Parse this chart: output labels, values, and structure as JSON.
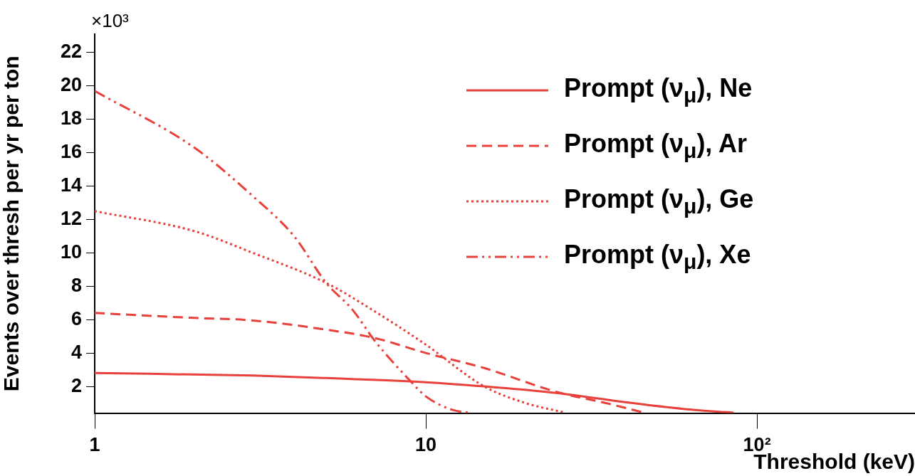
{
  "chart_data": {
    "type": "line",
    "xlabel": "Threshold (keV)",
    "ylabel": "Events over thresh per yr per ton",
    "annotations": [
      "×10³"
    ],
    "log": "x",
    "xlim": [
      1,
      300
    ],
    "xticks": [
      1,
      10,
      {
        "value": 100,
        "label": "10²"
      }
    ],
    "ylim": [
      0.4,
      23.1
    ],
    "yticks": [
      2,
      4,
      6,
      8,
      10,
      12,
      14,
      16,
      18,
      20,
      22
    ],
    "grid": false,
    "legend": "top right",
    "marker": "none",
    "series": [
      {
        "name": "Prompt (ν$_{μ}$), Ne",
        "color": "#e8403a",
        "line_style": "solid",
        "x": [
          1,
          3,
          5,
          10,
          15,
          25,
          40,
          60,
          85
        ],
        "values": [
          2.8,
          2.65,
          2.5,
          2.25,
          2.0,
          1.6,
          1.05,
          0.65,
          0.42
        ]
      },
      {
        "name": "Prompt (ν$_{μ}$), Ar",
        "color": "#e8403a",
        "line_style": "dashed",
        "x": [
          1,
          2,
          3,
          5,
          7,
          10,
          15,
          25,
          35,
          45
        ],
        "values": [
          6.4,
          6.1,
          5.95,
          5.4,
          4.9,
          4.0,
          3.1,
          1.65,
          1.0,
          0.45
        ]
      },
      {
        "name": "Prompt (ν$_{μ}$), Ge",
        "color": "#e8403a",
        "line_style": "dotted",
        "x": [
          1,
          2,
          3,
          5,
          7,
          10,
          15,
          20,
          26
        ],
        "values": [
          12.5,
          11.3,
          10.0,
          8.2,
          6.5,
          4.5,
          2.0,
          1.0,
          0.45
        ]
      },
      {
        "name": "Prompt (ν$_{μ}$), Xe",
        "color": "#e8403a",
        "line_style": "dashdot",
        "x": [
          1,
          2,
          3,
          4,
          5,
          6,
          7,
          9,
          10,
          12,
          13.5
        ],
        "values": [
          19.7,
          16.3,
          13.4,
          11.0,
          8.2,
          6.6,
          4.75,
          2.3,
          1.4,
          0.6,
          0.42
        ]
      }
    ]
  }
}
